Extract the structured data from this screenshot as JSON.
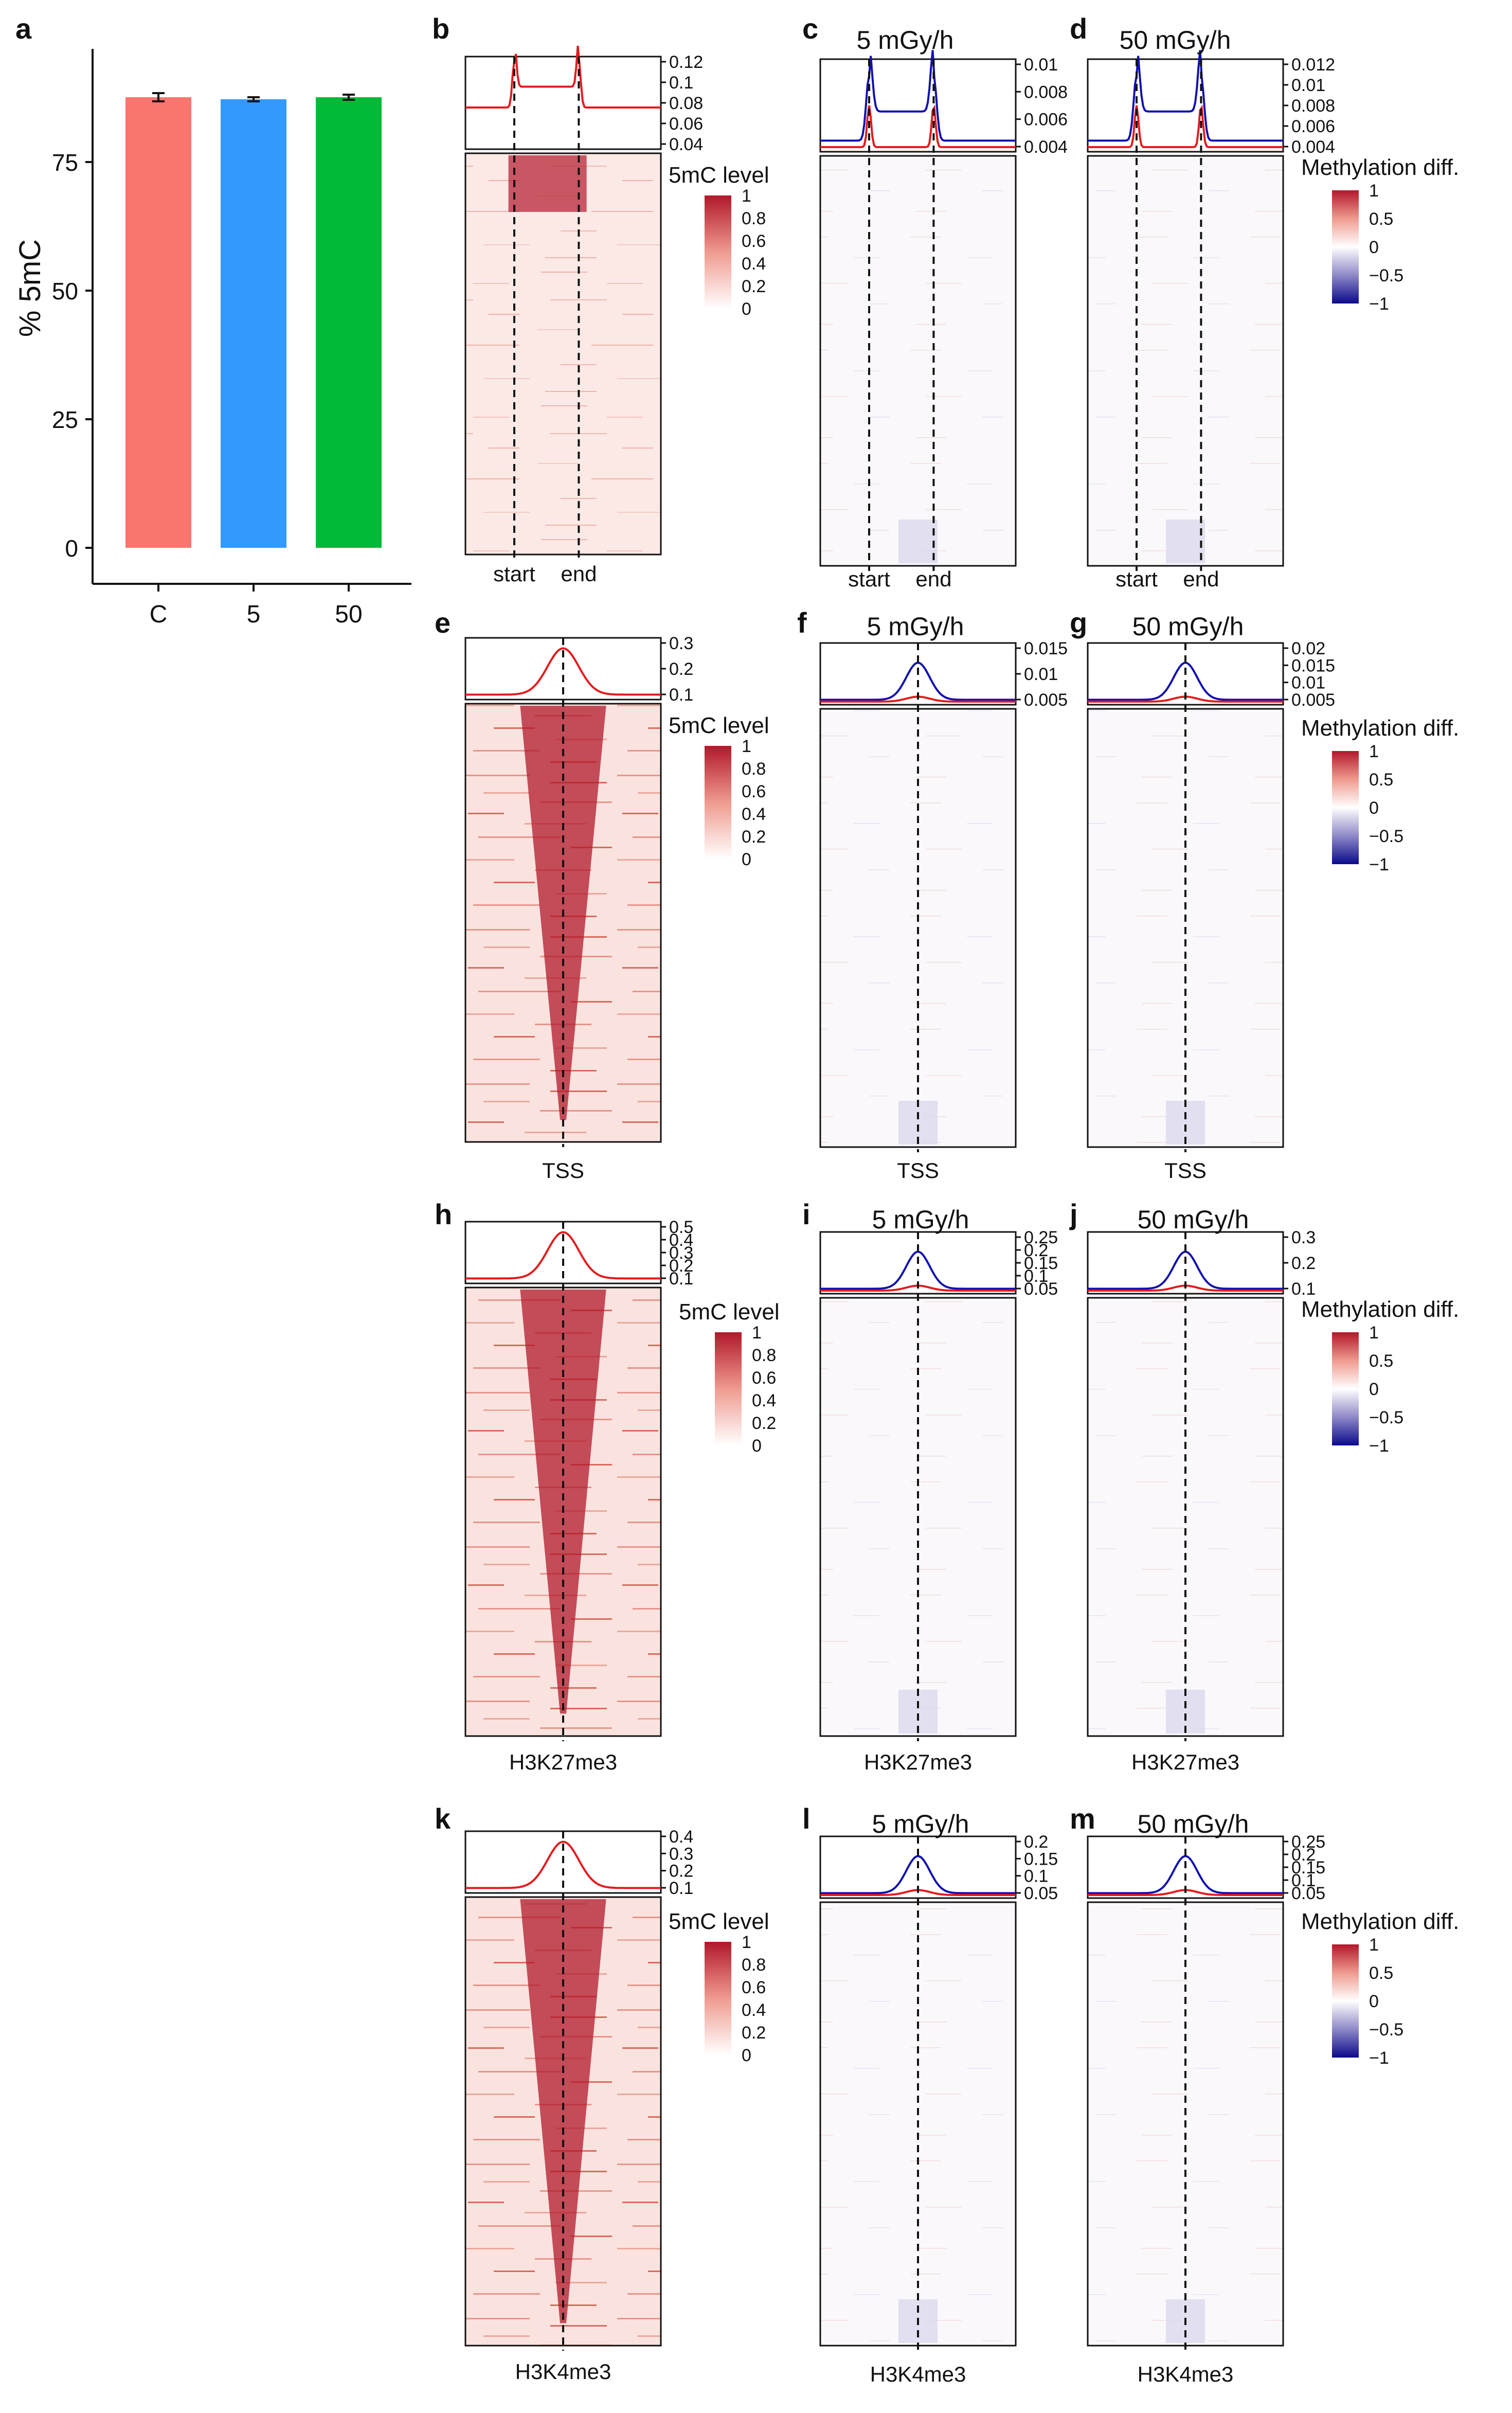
{
  "panel_letters": {
    "a": "a",
    "b": "b",
    "c": "c",
    "d": "d",
    "e": "e",
    "f": "f",
    "g": "g",
    "h": "h",
    "i": "i",
    "j": "j",
    "k": "k",
    "l": "l",
    "m": "m"
  },
  "conditions": {
    "low": "5 mGy/h",
    "high": "50 mGy/h"
  },
  "row_labels": {
    "gene_start": "start",
    "gene_end": "end",
    "tss": "TSS",
    "h3k27": "H3K27me3",
    "h3k4": "H3K4me3"
  },
  "legend_5mc": {
    "title": "5mC level",
    "ticks": [
      "1",
      "0.8",
      "0.6",
      "0.4",
      "0.2",
      "0"
    ]
  },
  "legend_diff": {
    "title": "Methylation diff.",
    "ticks": [
      "1",
      "0.5",
      "0",
      "−0.5",
      "−1"
    ]
  },
  "colors": {
    "control": "#F8766D",
    "dose5": "#3399FF",
    "dose50": "#00BA38",
    "methyl_red": "#B2182B",
    "profile_red": "#E41A1C",
    "profile_blue": "#1010B0",
    "diff_blue": "#08088C"
  },
  "chart_data": [
    {
      "panel": "a",
      "type": "bar",
      "categories": [
        "C",
        "5",
        "50"
      ],
      "values": [
        87.6,
        87.2,
        87.6
      ],
      "errors": [
        0.8,
        0.4,
        0.5
      ],
      "ylabel": "% 5mC",
      "ylim": [
        0,
        90
      ],
      "yticks": [
        "0",
        "25",
        "50",
        "75"
      ],
      "grid": false
    },
    {
      "panel": "b",
      "type": "heatmap",
      "profile_ticks": [
        "0.12",
        "0.1",
        "0.08",
        "0.06",
        "0.04"
      ],
      "xticks": [
        "start",
        "end"
      ]
    },
    {
      "panel": "c",
      "type": "heatmap",
      "title": "5 mGy/h",
      "profile_ticks": [
        "0.01",
        "0.008",
        "0.006",
        "0.004"
      ],
      "xticks": [
        "start",
        "end"
      ]
    },
    {
      "panel": "d",
      "type": "heatmap",
      "title": "50 mGy/h",
      "profile_ticks": [
        "0.012",
        "0.01",
        "0.008",
        "0.006",
        "0.004"
      ],
      "xticks": [
        "start",
        "end"
      ]
    },
    {
      "panel": "e",
      "type": "heatmap",
      "profile_ticks": [
        "0.3",
        "0.2",
        "0.1"
      ],
      "xticks": [
        "TSS"
      ]
    },
    {
      "panel": "f",
      "type": "heatmap",
      "title": "5 mGy/h",
      "profile_ticks": [
        "0.015",
        "0.01",
        "0.005"
      ],
      "xticks": [
        "TSS"
      ]
    },
    {
      "panel": "g",
      "type": "heatmap",
      "title": "50 mGy/h",
      "profile_ticks": [
        "0.02",
        "0.015",
        "0.01",
        "0.005"
      ],
      "xticks": [
        "TSS"
      ]
    },
    {
      "panel": "h",
      "type": "heatmap",
      "profile_ticks": [
        "0.5",
        "0.4",
        "0.3",
        "0.2",
        "0.1"
      ],
      "xticks": [
        "H3K27me3"
      ]
    },
    {
      "panel": "i",
      "type": "heatmap",
      "title": "5 mGy/h",
      "profile_ticks": [
        "0.25",
        "0.2",
        "0.15",
        "0.1",
        "0.05"
      ],
      "xticks": [
        "H3K27me3"
      ]
    },
    {
      "panel": "j",
      "type": "heatmap",
      "title": "50 mGy/h",
      "profile_ticks": [
        "0.3",
        "0.2",
        "0.1"
      ],
      "xticks": [
        "H3K27me3"
      ]
    },
    {
      "panel": "k",
      "type": "heatmap",
      "profile_ticks": [
        "0.4",
        "0.3",
        "0.2",
        "0.1"
      ],
      "xticks": [
        "H3K4me3"
      ]
    },
    {
      "panel": "l",
      "type": "heatmap",
      "title": "5 mGy/h",
      "profile_ticks": [
        "0.2",
        "0.15",
        "0.1",
        "0.05"
      ],
      "xticks": [
        "H3K4me3"
      ]
    },
    {
      "panel": "m",
      "type": "heatmap",
      "title": "50 mGy/h",
      "profile_ticks": [
        "0.25",
        "0.2",
        "0.15",
        "0.1",
        "0.05"
      ],
      "xticks": [
        "H3K4me3"
      ]
    }
  ]
}
